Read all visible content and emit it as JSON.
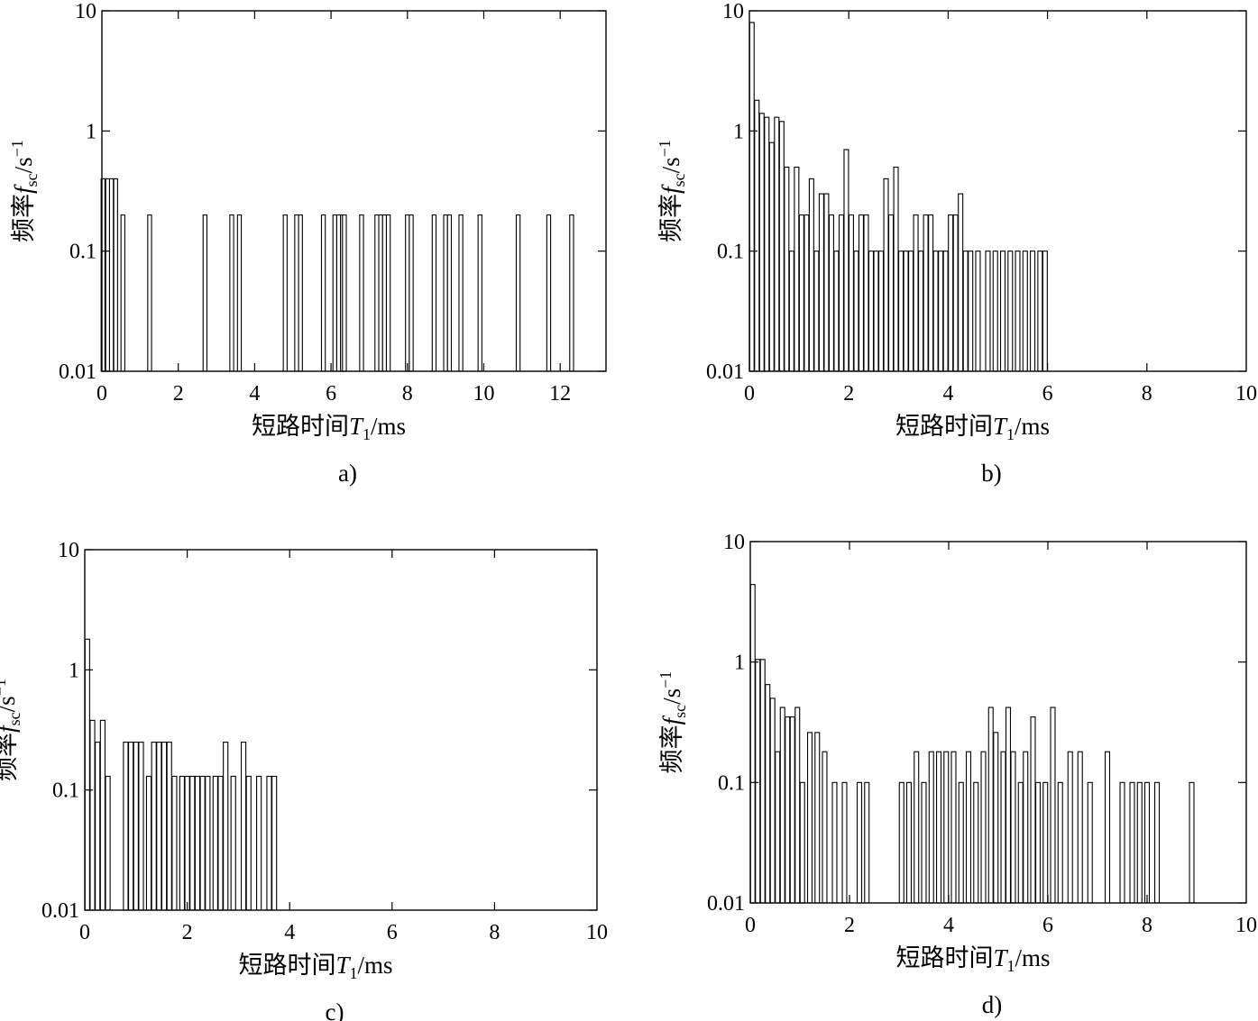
{
  "chart_data": [
    {
      "type": "bar",
      "caption": "a)",
      "xlabel_main": "短路时间",
      "xlabel_var": "T",
      "xlabel_sub": "1",
      "xlabel_unit": "/ms",
      "ylabel_main": "频率",
      "ylabel_var": "f",
      "ylabel_sub": "sc",
      "ylabel_unit": "/s",
      "ylabel_sup": "−1",
      "y_scale": "log",
      "ylim": [
        0.01,
        10
      ],
      "xlim": [
        0,
        13.2
      ],
      "xticks": [
        "0",
        "2",
        "4",
        "6",
        "8",
        "10",
        "12"
      ],
      "yticks": [
        "0.01",
        "0.1",
        "1",
        "10"
      ],
      "bar_width": 0.1,
      "bars": {
        "x": [
          0.03,
          0.15,
          0.25,
          0.36,
          0.55,
          1.25,
          2.7,
          3.4,
          3.6,
          4.8,
          5.1,
          5.2,
          5.8,
          6.1,
          6.2,
          6.3,
          6.35,
          6.8,
          7.2,
          7.3,
          7.4,
          7.5,
          8.0,
          8.1,
          8.7,
          9.0,
          9.1,
          9.4,
          9.9,
          10.9,
          11.7,
          12.3
        ],
        "values": [
          0.4,
          0.4,
          0.4,
          0.4,
          0.2,
          0.2,
          0.2,
          0.2,
          0.2,
          0.2,
          0.2,
          0.2,
          0.2,
          0.2,
          0.2,
          0.2,
          0.2,
          0.2,
          0.2,
          0.2,
          0.2,
          0.2,
          0.2,
          0.2,
          0.2,
          0.2,
          0.2,
          0.2,
          0.2,
          0.2,
          0.2,
          0.2
        ]
      }
    },
    {
      "type": "bar",
      "caption": "b)",
      "xlabel_main": "短路时间",
      "xlabel_var": "T",
      "xlabel_sub": "1",
      "xlabel_unit": "/ms",
      "ylabel_main": "频率",
      "ylabel_var": "f",
      "ylabel_sub": "sc",
      "ylabel_unit": "/s",
      "ylabel_sup": "−1",
      "y_scale": "log",
      "ylim": [
        0.01,
        10
      ],
      "xlim": [
        0,
        10
      ],
      "xticks": [
        "0",
        "2",
        "4",
        "6",
        "8",
        "10"
      ],
      "yticks": [
        "0.01",
        "0.1",
        "1",
        "10"
      ],
      "bar_width": 0.09,
      "bars": {
        "x": [
          0.05,
          0.15,
          0.25,
          0.35,
          0.45,
          0.55,
          0.65,
          0.75,
          0.85,
          0.95,
          1.05,
          1.15,
          1.25,
          1.35,
          1.45,
          1.55,
          1.65,
          1.75,
          1.85,
          1.95,
          2.05,
          2.15,
          2.25,
          2.35,
          2.45,
          2.55,
          2.65,
          2.75,
          2.85,
          2.95,
          3.05,
          3.15,
          3.25,
          3.35,
          3.45,
          3.55,
          3.65,
          3.75,
          3.85,
          3.95,
          4.05,
          4.15,
          4.25,
          4.35,
          4.45,
          4.6,
          4.8,
          4.95,
          5.1,
          5.25,
          5.4,
          5.55,
          5.7,
          5.85,
          5.95
        ],
        "values": [
          8.0,
          1.8,
          1.4,
          1.3,
          0.8,
          1.3,
          1.2,
          0.5,
          0.1,
          0.5,
          0.2,
          0.2,
          0.4,
          0.1,
          0.3,
          0.3,
          0.2,
          0.1,
          0.2,
          0.7,
          0.2,
          0.1,
          0.2,
          0.2,
          0.1,
          0.1,
          0.1,
          0.4,
          0.2,
          0.5,
          0.1,
          0.1,
          0.1,
          0.2,
          0.1,
          0.2,
          0.2,
          0.1,
          0.1,
          0.1,
          0.2,
          0.2,
          0.3,
          0.1,
          0.1,
          0.1,
          0.1,
          0.1,
          0.1,
          0.1,
          0.1,
          0.1,
          0.1,
          0.1,
          0.1
        ]
      }
    },
    {
      "type": "bar",
      "caption": "c)",
      "xlabel_main": "短路时间",
      "xlabel_var": "T",
      "xlabel_sub": "1",
      "xlabel_unit": "/ms",
      "ylabel_main": "频率",
      "ylabel_var": "f",
      "ylabel_sub": "sc",
      "ylabel_unit": "/s",
      "ylabel_sup": "−1",
      "y_scale": "log",
      "ylim": [
        0.01,
        10
      ],
      "xlim": [
        0,
        10
      ],
      "xticks": [
        "0",
        "2",
        "4",
        "6",
        "8",
        "10"
      ],
      "yticks": [
        "0.01",
        "0.1",
        "1",
        "10"
      ],
      "bar_width": 0.09,
      "bars": {
        "x": [
          0.05,
          0.15,
          0.25,
          0.35,
          0.45,
          0.8,
          0.9,
          1.0,
          1.1,
          1.25,
          1.35,
          1.45,
          1.55,
          1.65,
          1.75,
          1.9,
          2.0,
          2.1,
          2.2,
          2.3,
          2.4,
          2.55,
          2.65,
          2.75,
          2.9,
          3.1,
          3.2,
          3.4,
          3.6,
          3.7
        ],
        "values": [
          1.8,
          0.38,
          0.25,
          0.38,
          0.13,
          0.25,
          0.25,
          0.25,
          0.25,
          0.13,
          0.25,
          0.25,
          0.25,
          0.25,
          0.13,
          0.13,
          0.13,
          0.13,
          0.13,
          0.13,
          0.13,
          0.13,
          0.13,
          0.25,
          0.13,
          0.25,
          0.13,
          0.13,
          0.13,
          0.13
        ]
      }
    },
    {
      "type": "bar",
      "caption": "d)",
      "xlabel_main": "短路时间",
      "xlabel_var": "T",
      "xlabel_sub": "1",
      "xlabel_unit": "/ms",
      "ylabel_main": "频率",
      "ylabel_var": "f",
      "ylabel_sub": "sc",
      "ylabel_unit": "/s",
      "ylabel_sup": "−1",
      "y_scale": "log",
      "ylim": [
        0.01,
        10
      ],
      "xlim": [
        0,
        10
      ],
      "xticks": [
        "0",
        "2",
        "4",
        "6",
        "8",
        "10"
      ],
      "yticks": [
        "0.01",
        "0.1",
        "1",
        "10"
      ],
      "bar_width": 0.09,
      "bars": {
        "x": [
          0.05,
          0.15,
          0.25,
          0.35,
          0.45,
          0.55,
          0.65,
          0.75,
          0.85,
          0.95,
          1.05,
          1.2,
          1.35,
          1.5,
          1.7,
          1.9,
          2.2,
          2.35,
          3.05,
          3.2,
          3.35,
          3.5,
          3.65,
          3.8,
          3.95,
          4.1,
          4.25,
          4.4,
          4.55,
          4.7,
          4.85,
          4.95,
          5.1,
          5.2,
          5.3,
          5.45,
          5.55,
          5.7,
          5.8,
          5.95,
          6.1,
          6.25,
          6.45,
          6.65,
          6.85,
          7.2,
          7.5,
          7.7,
          7.85,
          8.0,
          8.2,
          8.9
        ],
        "values": [
          4.4,
          1.05,
          1.05,
          0.65,
          0.5,
          0.18,
          0.42,
          0.35,
          0.35,
          0.42,
          0.1,
          0.26,
          0.26,
          0.18,
          0.1,
          0.1,
          0.1,
          0.1,
          0.1,
          0.1,
          0.18,
          0.1,
          0.18,
          0.18,
          0.18,
          0.18,
          0.1,
          0.18,
          0.1,
          0.18,
          0.42,
          0.26,
          0.18,
          0.42,
          0.18,
          0.1,
          0.18,
          0.35,
          0.1,
          0.1,
          0.42,
          0.1,
          0.18,
          0.18,
          0.1,
          0.18,
          0.1,
          0.1,
          0.1,
          0.1,
          0.1,
          0.1
        ]
      }
    }
  ]
}
